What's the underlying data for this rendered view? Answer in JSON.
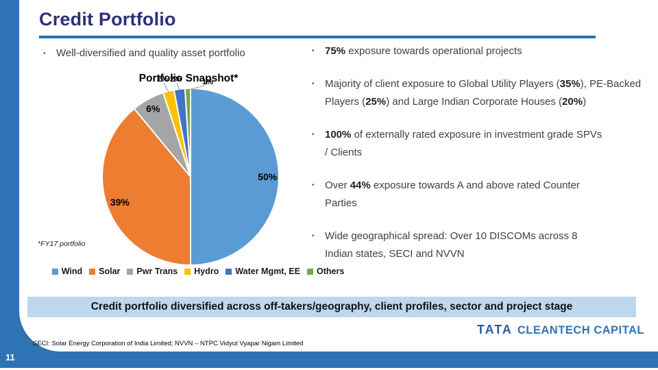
{
  "header": {
    "title": "Credit Portfolio"
  },
  "ui": {
    "bullet_char": "•"
  },
  "left_column": {
    "bullet": "Well-diversified and quality asset portfolio"
  },
  "right_column": {
    "bullets": [
      {
        "segments": [
          {
            "t": "75%",
            "b": true
          },
          {
            "t": " exposure towards operational projects",
            "b": false
          }
        ]
      },
      {
        "segments": [
          {
            "t": "Majority of client exposure to Global Utility Players (",
            "b": false
          },
          {
            "t": "35%",
            "b": true
          },
          {
            "t": "), PE-Backed Players (",
            "b": false
          },
          {
            "t": "25%",
            "b": true
          },
          {
            "t": ") and Large Indian Corporate Houses (",
            "b": false
          },
          {
            "t": "20%",
            "b": true
          },
          {
            "t": ")",
            "b": false
          }
        ]
      },
      {
        "segments": [
          {
            "t": "100%",
            "b": true
          },
          {
            "t": " of externally rated exposure in investment grade SPVs / Clients",
            "b": false
          }
        ]
      },
      {
        "segments": [
          {
            "t": "Over ",
            "b": false
          },
          {
            "t": "44%",
            "b": true
          },
          {
            "t": " exposure towards A and above rated Counter Parties",
            "b": false
          }
        ]
      },
      {
        "segments": [
          {
            "t": "Wide geographical spread: Over 10 DISCOMs across 8 Indian states, SECI and NVVN",
            "b": false
          }
        ]
      }
    ]
  },
  "chart_data": {
    "type": "pie",
    "title": "Portfolio Snapshot*",
    "note": "*FY17 portfolio",
    "categories": [
      "Wind",
      "Solar",
      "Pwr Trans",
      "Hydro",
      "Water Mgmt, EE",
      "Others"
    ],
    "values": [
      50,
      39,
      6,
      2,
      2,
      1
    ],
    "labels": [
      "50%",
      "39%",
      "6%",
      "2%",
      "2%",
      "1%"
    ],
    "colors": [
      "#5B9BD5",
      "#ED7D31",
      "#A5A5A5",
      "#FFC000",
      "#4472C4",
      "#70AD47"
    ],
    "total": 100,
    "start_angle_deg": 0,
    "direction": "clockwise",
    "legend_position": "bottom"
  },
  "banner": {
    "text": "Credit portfolio diversified across off-takers/geography, client profiles, sector and project stage",
    "background": "#BDD7EE"
  },
  "footer": {
    "note": "SECI: Solar Energy Corporation of India Limited; NVVN – NTPC Vidyut Vyapar Nigam Limited",
    "page_number": "11"
  },
  "logo": {
    "primary": "TATA",
    "secondary": "CLEANTECH CAPITAL"
  },
  "theme": {
    "accent_blue": "#2E74B5",
    "title_color": "#2F2F7B",
    "rule_color": "#2173B0"
  }
}
